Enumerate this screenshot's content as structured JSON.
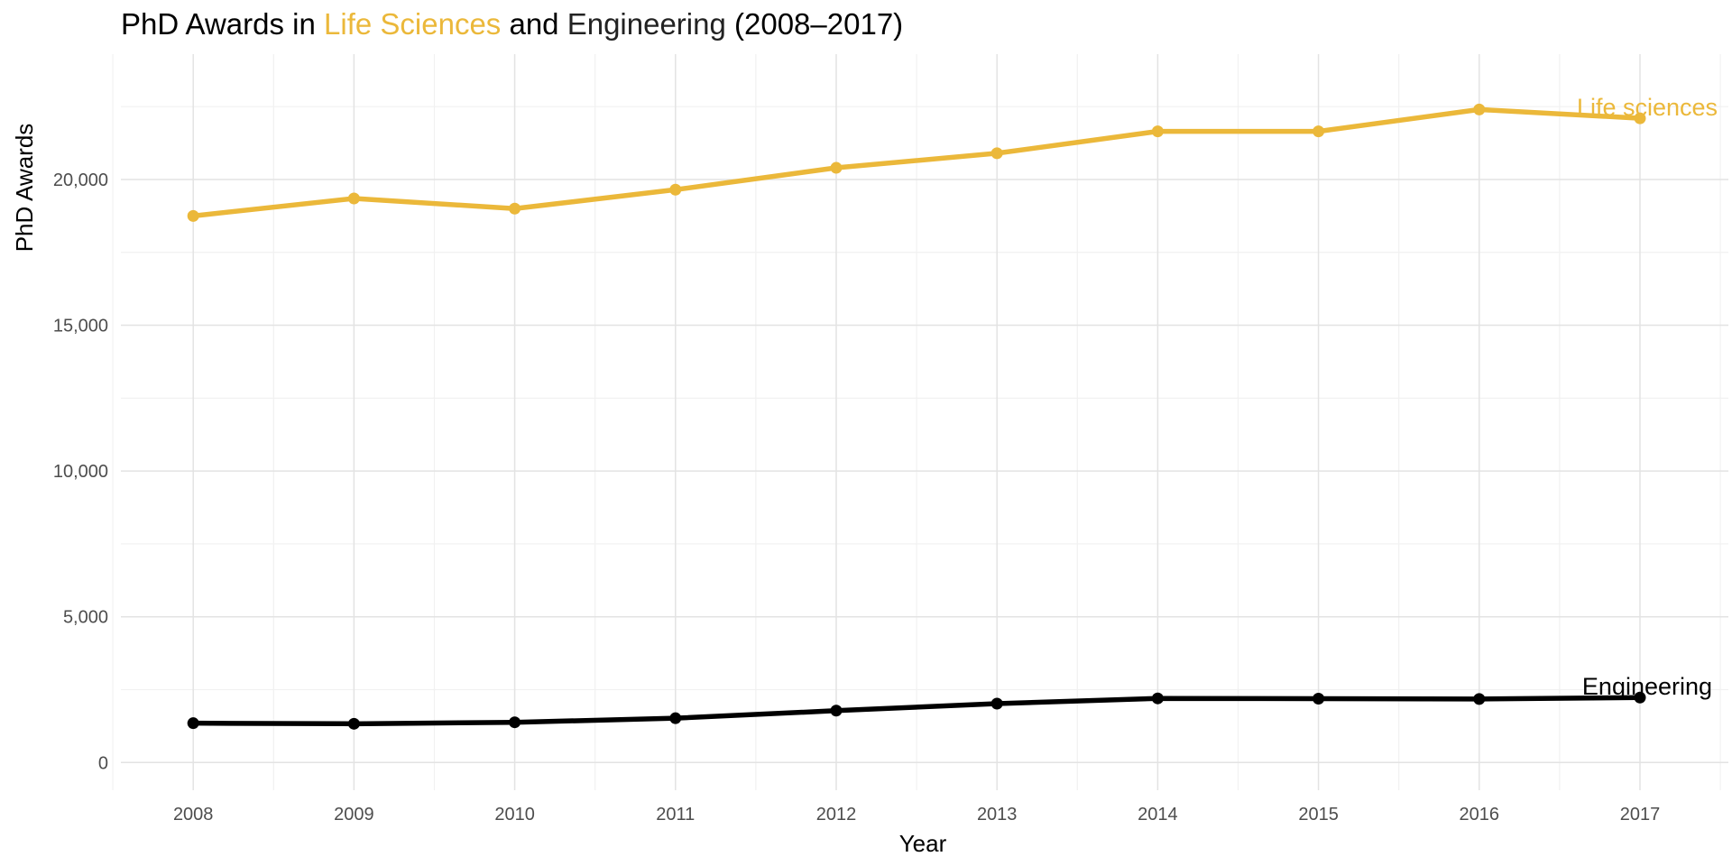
{
  "title": {
    "prefix": "PhD Awards in ",
    "highlight1": "Life Sciences",
    "middle": " and ",
    "highlight2": "Engineering",
    "suffix": " (2008–2017)"
  },
  "colors": {
    "life_sciences": "#EBB83A",
    "engineering": "#000000",
    "grid_major": "#E3E3E3",
    "grid_minor": "#F1F1F1",
    "engineering_title_word": "#222222"
  },
  "chart_data": {
    "type": "line",
    "title": "PhD Awards in Life Sciences and Engineering (2008–2017)",
    "xlabel": "Year",
    "ylabel": "PhD Awards",
    "x": [
      2008,
      2009,
      2010,
      2011,
      2012,
      2013,
      2014,
      2015,
      2016,
      2017
    ],
    "xlim": [
      2007.55,
      2017.55
    ],
    "ylim": [
      -950,
      24300
    ],
    "y_ticks": [
      0,
      5000,
      10000,
      15000,
      20000
    ],
    "y_tick_labels": [
      "0",
      "5,000",
      "10,000",
      "15,000",
      "20,000"
    ],
    "x_tick_labels": [
      "2008",
      "2009",
      "2010",
      "2011",
      "2012",
      "2013",
      "2014",
      "2015",
      "2016",
      "2017"
    ],
    "grid": true,
    "legend": "direct labels at line ends",
    "series": [
      {
        "name": "Life sciences",
        "color": "#EBB83A",
        "values": [
          18750,
          19350,
          19000,
          19650,
          20400,
          20900,
          21650,
          21650,
          22400,
          22100
        ]
      },
      {
        "name": "Engineering",
        "color": "#000000",
        "values": [
          1350,
          1330,
          1380,
          1520,
          1780,
          2020,
          2200,
          2190,
          2180,
          2230
        ]
      }
    ]
  }
}
